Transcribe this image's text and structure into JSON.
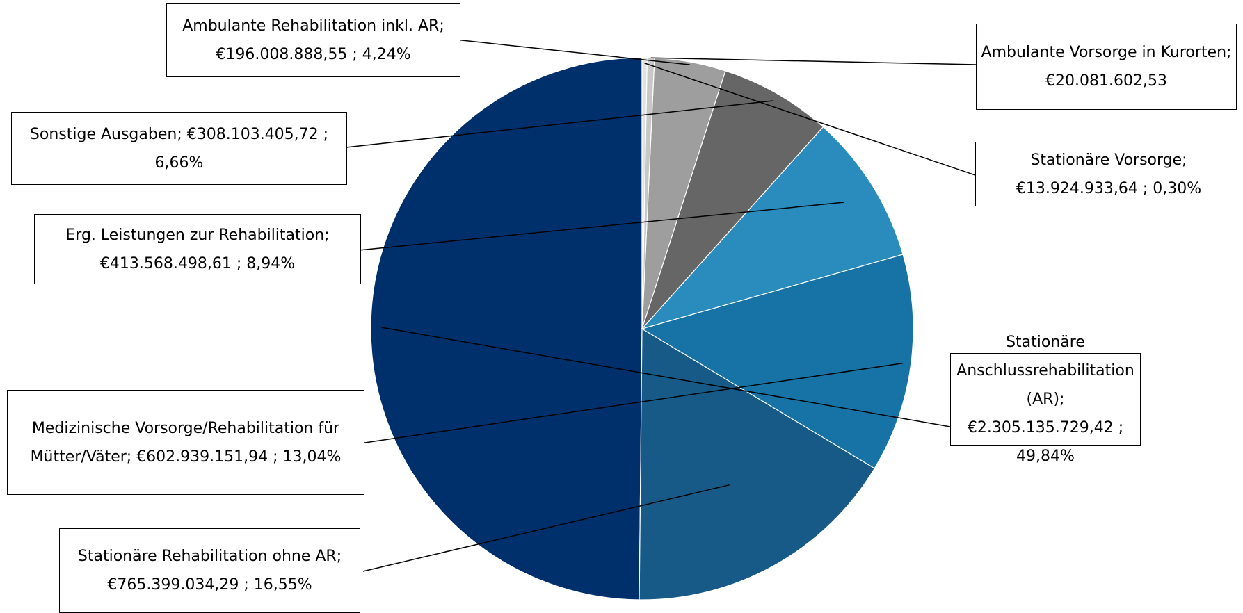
{
  "chart_data": {
    "type": "pie",
    "currency": "€",
    "slices": [
      {
        "name": "Stationäre Anschlussrehabilitation (AR)",
        "value": 2305135729.42,
        "percent": 49.84,
        "label": "Stationäre Anschlussrehabilitation (AR); €2.305.135.729,42 ; 49,84%",
        "color": "#00306b"
      },
      {
        "name": "Stationäre Rehabilitation ohne AR",
        "value": 765399034.29,
        "percent": 16.55,
        "label": "Stationäre Rehabilitation ohne AR; €765.399.034,29 ; 16,55%",
        "color": "#175a87"
      },
      {
        "name": "Medizinische Vorsorge/Rehabilitation für Mütter/Väter",
        "value": 602939151.94,
        "percent": 13.04,
        "label": "Medizinische Vorsorge/Rehabilitation für Mütter/Väter; €602.939.151,94 ; 13,04%",
        "color": "#1773a6"
      },
      {
        "name": "Erg. Leistungen zur Rehabilitation",
        "value": 413568498.61,
        "percent": 8.94,
        "label": "Erg. Leistungen zur Rehabilitation; €413.568.498,61 ; 8,94%",
        "color": "#2a8cbd"
      },
      {
        "name": "Sonstige Ausgaben",
        "value": 308103405.72,
        "percent": 6.66,
        "label": "Sonstige Ausgaben; €308.103.405,72 ; 6,66%",
        "color": "#666666"
      },
      {
        "name": "Ambulante Rehabilitation inkl. AR",
        "value": 196008888.55,
        "percent": 4.24,
        "label": "Ambulante Rehabilitation inkl. AR; €196.008.888,55 ; 4,24%",
        "color": "#9e9e9e"
      },
      {
        "name": "Ambulante Vorsorge in Kurorten",
        "value": 20081602.53,
        "percent": 0.43,
        "label": "Ambulante Vorsorge in Kurorten; €20.081.602,53",
        "color": "#c8c8c8"
      },
      {
        "name": "Stationäre Vorsorge",
        "value": 13924933.64,
        "percent": 0.3,
        "label": "Stationäre Vorsorge; €13.924.933,64 ; 0,30%",
        "color": "#e1e1e1"
      }
    ],
    "legend": "none",
    "start_angle": "12 o'clock",
    "direction": "counter-clockwise"
  },
  "labels": {
    "l0": "Stationäre Anschlussrehabilitation (AR); €2.305.135.729,42 ; 49,84%",
    "l1": "Stationäre Rehabilitation ohne AR; €765.399.034,29 ; 16,55%",
    "l2": "Medizinische Vorsorge/Rehabilitation für Mütter/Väter; €602.939.151,94 ; 13,04%",
    "l3": "Erg. Leistungen zur Rehabilitation; €413.568.498,61 ; 8,94%",
    "l4": "Sonstige Ausgaben; €308.103.405,72 ; 6,66%",
    "l5": "Ambulante Rehabilitation inkl. AR; €196.008.888,55 ; 4,24%",
    "l6": "Ambulante Vorsorge in Kurorten; €20.081.602,53",
    "l7": "Stationäre Vorsorge; €13.924.933,64 ; 0,30%"
  }
}
